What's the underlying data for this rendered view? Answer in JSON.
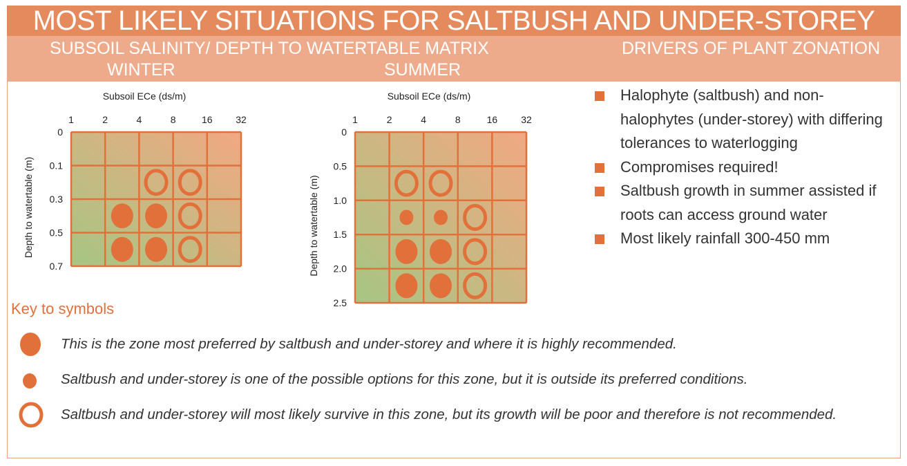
{
  "header": {
    "title": "MOST LIKELY SITUATIONS FOR SALTBUSH AND UNDER-STOREY",
    "matrix_title": "SUBSOIL SALINITY/ DEPTH TO WATERTABLE MATRIX",
    "winter_label": "WINTER",
    "summer_label": "SUMMER",
    "drivers_title": "DRIVERS OF PLANT ZONATION"
  },
  "colors": {
    "accent": "#e2703a",
    "title_bar": "#e58a5c",
    "sub_bar": "#eeab8b",
    "gradient_green": "#a6c683",
    "gradient_orange": "#f2a882"
  },
  "chart_data": [
    {
      "type": "heatmap",
      "name": "winter",
      "xlabel": "Subsoil ECe (ds/m)",
      "ylabel": "Depth to watertable (m)",
      "x_ticks": [
        "1",
        "2",
        "4",
        "8",
        "16",
        "32"
      ],
      "y_ticks": [
        "0",
        "0.1",
        "0.3",
        "0.5",
        "0.7"
      ],
      "symbols": [
        {
          "row": 1,
          "col": 2,
          "type": "ring"
        },
        {
          "row": 1,
          "col": 3,
          "type": "ring"
        },
        {
          "row": 2,
          "col": 1,
          "type": "large"
        },
        {
          "row": 2,
          "col": 2,
          "type": "large"
        },
        {
          "row": 2,
          "col": 3,
          "type": "ring"
        },
        {
          "row": 3,
          "col": 1,
          "type": "large"
        },
        {
          "row": 3,
          "col": 2,
          "type": "large"
        },
        {
          "row": 3,
          "col": 3,
          "type": "ring"
        }
      ]
    },
    {
      "type": "heatmap",
      "name": "summer",
      "xlabel": "Subsoil ECe (ds/m)",
      "ylabel": "Depth to watertable (m)",
      "x_ticks": [
        "1",
        "2",
        "4",
        "8",
        "16",
        "32"
      ],
      "y_ticks": [
        "0",
        "0.5",
        "1.0",
        "1.5",
        "2.0",
        "2.5"
      ],
      "symbols": [
        {
          "row": 1,
          "col": 1,
          "type": "ring"
        },
        {
          "row": 1,
          "col": 2,
          "type": "ring"
        },
        {
          "row": 2,
          "col": 1,
          "type": "small"
        },
        {
          "row": 2,
          "col": 2,
          "type": "small"
        },
        {
          "row": 2,
          "col": 3,
          "type": "ring"
        },
        {
          "row": 3,
          "col": 1,
          "type": "large"
        },
        {
          "row": 3,
          "col": 2,
          "type": "large"
        },
        {
          "row": 3,
          "col": 3,
          "type": "ring"
        },
        {
          "row": 4,
          "col": 1,
          "type": "large"
        },
        {
          "row": 4,
          "col": 2,
          "type": "large"
        },
        {
          "row": 4,
          "col": 3,
          "type": "ring"
        }
      ]
    }
  ],
  "drivers": [
    "Halophyte (saltbush) and non-halophytes (under-storey) with differing tolerances to waterlogging",
    "Compromises required!",
    "Saltbush growth in summer assisted if roots can access ground water",
    "Most likely rainfall 300-450 mm"
  ],
  "key": {
    "title": "Key to symbols",
    "items": [
      {
        "symbol": "large",
        "text": "This is the zone most preferred by saltbush and under-storey and where it is highly recommended."
      },
      {
        "symbol": "small",
        "text": "Saltbush and under-storey is one of the possible options for this zone, but it is outside its preferred conditions."
      },
      {
        "symbol": "ring",
        "text": "Saltbush and under-storey will most likely survive in this zone, but its growth will be poor and therefore is not recommended."
      }
    ]
  }
}
